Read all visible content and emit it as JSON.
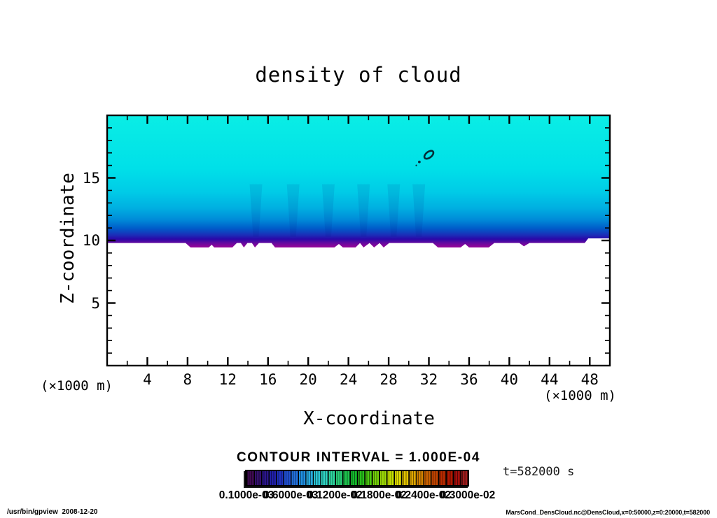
{
  "chart_data": {
    "type": "heatmap",
    "title": "density of cloud",
    "xlabel": "X-coordinate",
    "ylabel": "Z-coordinate",
    "x_unit_left": "(×1000 m)",
    "x_unit_right": "(×1000 m)",
    "xlim": [
      0,
      50
    ],
    "ylim": [
      0,
      20
    ],
    "x_ticks": {
      "minor_step": 2,
      "major_step": 4,
      "labeled": [
        4,
        8,
        12,
        16,
        20,
        24,
        28,
        32,
        36,
        40,
        44,
        48
      ]
    },
    "y_ticks": {
      "minor_step": 1,
      "major_step": 5,
      "labeled": [
        5,
        10,
        15
      ]
    },
    "grid": false,
    "contour_interval_text": "CONTOUR INTERVAL = 1.000E-04",
    "time_text": "t=582000 s",
    "colorbar": {
      "labels": [
        "0.1000e-03",
        "0.6000e-03",
        "0.1200e-02",
        "0.1800e-02",
        "0.2400e-02",
        "0.3000e-02"
      ],
      "range": [
        0.0001,
        0.0031
      ],
      "cells": 30,
      "colors": [
        "#3F0A52",
        "#34106E",
        "#2A168C",
        "#2120AA",
        "#1F32C2",
        "#2050D2",
        "#2270DC",
        "#1F8EE0",
        "#28AADE",
        "#2AC4D4",
        "#2ED4C2",
        "#2ED6A0",
        "#27CE77",
        "#1DC34E",
        "#14BA2C",
        "#27BF1A",
        "#4CC810",
        "#75D309",
        "#9EDC06",
        "#C6E300",
        "#DFDC00",
        "#E2C300",
        "#DEA500",
        "#D58300",
        "#CB6100",
        "#C04300",
        "#BA2B00",
        "#B01700",
        "#A60D0B",
        "#A01D1D"
      ]
    },
    "field": {
      "description": "cloud layer filling z≈10–20 for all x; density shading from cyan (top) through blue to a thin purple band at cloud base; white (no cloud) below z≈10",
      "gradient_top_to_base": [
        {
          "at": 0.0,
          "c": "#0AEDE5"
        },
        {
          "at": 0.4,
          "c": "#00E0E8"
        },
        {
          "at": 0.58,
          "c": "#00CBE7"
        },
        {
          "at": 0.7,
          "c": "#00AFE1"
        },
        {
          "at": 0.79,
          "c": "#008AD8"
        },
        {
          "at": 0.855,
          "c": "#005CC9"
        },
        {
          "at": 0.905,
          "c": "#1B2EB8"
        },
        {
          "at": 0.936,
          "c": "#2A08A8"
        },
        {
          "at": 0.963,
          "c": "#5F0AA0"
        },
        {
          "at": 1.0,
          "c": "#9A0598"
        }
      ],
      "below_color": "#FFFFFF",
      "cloud_base_boundary_xz": [
        [
          0,
          9.8
        ],
        [
          7.8,
          9.8
        ],
        [
          8.3,
          9.44
        ],
        [
          10.1,
          9.44
        ],
        [
          10.4,
          9.66
        ],
        [
          10.65,
          9.44
        ],
        [
          12.45,
          9.44
        ],
        [
          12.9,
          9.8
        ],
        [
          13.3,
          9.8
        ],
        [
          13.6,
          9.44
        ],
        [
          13.95,
          9.8
        ],
        [
          14.4,
          9.8
        ],
        [
          14.7,
          9.44
        ],
        [
          15.1,
          9.8
        ],
        [
          16.35,
          9.8
        ],
        [
          16.7,
          9.44
        ],
        [
          22.6,
          9.44
        ],
        [
          23.05,
          9.72
        ],
        [
          23.45,
          9.44
        ],
        [
          24.7,
          9.44
        ],
        [
          25.15,
          9.8
        ],
        [
          25.5,
          9.44
        ],
        [
          26.1,
          9.8
        ],
        [
          26.55,
          9.44
        ],
        [
          27.1,
          9.8
        ],
        [
          27.5,
          9.44
        ],
        [
          28.05,
          9.8
        ],
        [
          32.4,
          9.8
        ],
        [
          32.9,
          9.44
        ],
        [
          35.15,
          9.44
        ],
        [
          35.6,
          9.72
        ],
        [
          36.0,
          9.44
        ],
        [
          37.95,
          9.44
        ],
        [
          38.5,
          9.8
        ],
        [
          41.0,
          9.8
        ],
        [
          41.45,
          9.53
        ],
        [
          42.0,
          9.8
        ],
        [
          47.5,
          9.8
        ],
        [
          47.85,
          10.17
        ],
        [
          50,
          10.17
        ]
      ],
      "plume_columns_x": [
        14.8,
        18.5,
        22.0,
        25.5,
        28.5,
        31.0
      ]
    },
    "contour_marks": [
      {
        "x": 32.0,
        "z": 16.85,
        "type": "ellipse"
      },
      {
        "x": 31.05,
        "z": 16.28,
        "type": "dot"
      },
      {
        "x": 30.75,
        "z": 16.0,
        "type": "small-dot"
      }
    ]
  },
  "footer": {
    "left": "/usr/bin/gpview  2008-12-20",
    "right": "MarsCond_DensCloud.nc@DensCloud,x=0:50000,z=0:20000,t=582000"
  }
}
